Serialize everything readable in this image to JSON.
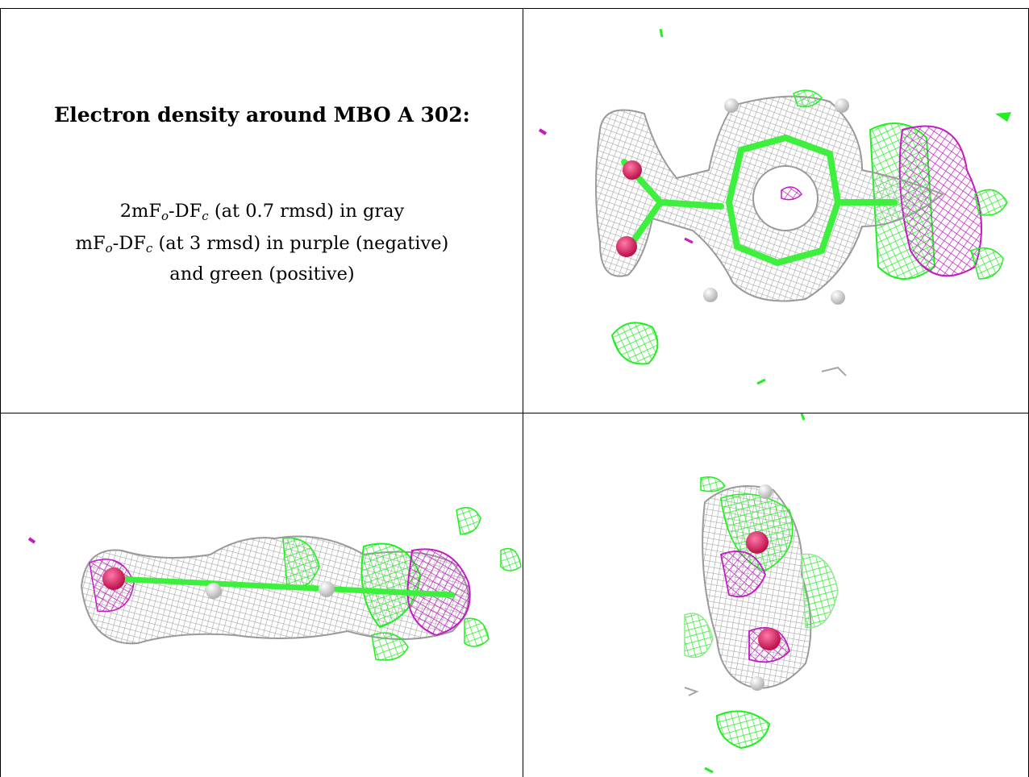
{
  "caption": {
    "title": "Electron density around MBO A 302:",
    "line1": {
      "lead": "2mF",
      "sub1": "o",
      "mid": "-DF",
      "sub2": "c",
      "tail": " (at 0.7 rmsd) in gray"
    },
    "line2": {
      "lead": "mF",
      "sub1": "o",
      "mid": "-DF",
      "sub2": "c",
      "tail": " (at 3 rmsd) in purple (negative)"
    },
    "line3": "and green (positive)"
  },
  "panels": [
    {
      "view": "top-right",
      "icon": "electron-density-map-face-view"
    },
    {
      "view": "bottom-left",
      "icon": "electron-density-map-edge-view"
    },
    {
      "view": "bottom-right",
      "icon": "electron-density-map-end-view"
    }
  ],
  "colors": {
    "gray_mesh": "#a6a6a6",
    "green_mesh": "#22ee22",
    "purple_mesh": "#c21cc2",
    "oxygen_atom": "#e0266a",
    "hydrogen_atom": "#e6e6e6",
    "bond": "#3df03d"
  }
}
